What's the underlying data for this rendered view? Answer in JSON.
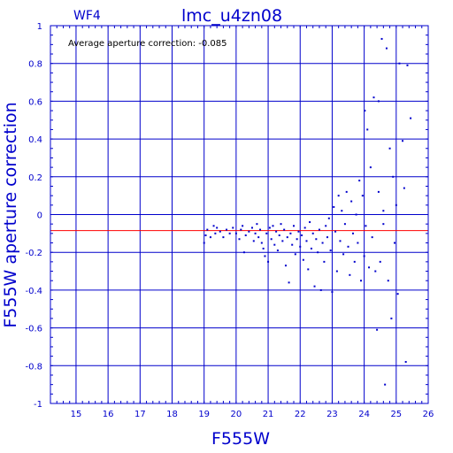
{
  "chart_data": {
    "type": "scatter",
    "title": "lmc_u4zn08",
    "chip_label": "WF4",
    "annotation": "Average aperture correction: -0.085",
    "xlabel": "F555W",
    "ylabel": "F555W aperture correction",
    "xlim": [
      14.2,
      26
    ],
    "ylim": [
      -1,
      1
    ],
    "xticks": [
      15,
      16,
      17,
      18,
      19,
      20,
      21,
      22,
      23,
      24,
      25,
      26
    ],
    "yticks": [
      -1,
      -0.8,
      -0.6,
      -0.4,
      -0.2,
      0,
      0.2,
      0.4,
      0.6,
      0.8,
      1
    ],
    "xtick_labels": [
      "15",
      "16",
      "17",
      "18",
      "19",
      "20",
      "21",
      "22",
      "23",
      "24",
      "25",
      "26"
    ],
    "ytick_labels": [
      "-1",
      "-0.8",
      "-0.6",
      "-0.4",
      "-0.2",
      "0",
      "0.2",
      "0.4",
      "0.6",
      "0.8",
      "1"
    ],
    "grid": true,
    "reference_line": {
      "y": -0.085,
      "color": "#ff0000"
    },
    "colors": {
      "axes": "#0000cc",
      "points": "#0000cc",
      "reference": "#ff0000"
    },
    "points": [
      [
        19.0,
        -0.15
      ],
      [
        19.05,
        -0.11
      ],
      [
        19.1,
        -0.08
      ],
      [
        19.2,
        -0.12
      ],
      [
        19.3,
        -0.06
      ],
      [
        19.35,
        -0.1
      ],
      [
        19.4,
        -0.07
      ],
      [
        19.5,
        -0.09
      ],
      [
        19.6,
        -0.12
      ],
      [
        19.7,
        -0.08
      ],
      [
        19.8,
        -0.1
      ],
      [
        19.9,
        -0.07
      ],
      [
        20.0,
        -0.1
      ],
      [
        20.1,
        -0.13
      ],
      [
        20.15,
        -0.08
      ],
      [
        20.2,
        -0.06
      ],
      [
        20.25,
        -0.2
      ],
      [
        20.3,
        -0.11
      ],
      [
        20.4,
        -0.09
      ],
      [
        20.5,
        -0.07
      ],
      [
        20.55,
        -0.14
      ],
      [
        20.6,
        -0.1
      ],
      [
        20.65,
        -0.05
      ],
      [
        20.7,
        -0.12
      ],
      [
        20.75,
        -0.08
      ],
      [
        20.8,
        -0.15
      ],
      [
        20.85,
        -0.18
      ],
      [
        20.9,
        -0.22
      ],
      [
        20.95,
        -0.1
      ],
      [
        21.0,
        -0.25
      ],
      [
        21.05,
        -0.07
      ],
      [
        21.1,
        -0.13
      ],
      [
        21.15,
        -0.06
      ],
      [
        21.2,
        -0.16
      ],
      [
        21.25,
        -0.09
      ],
      [
        21.3,
        -0.19
      ],
      [
        21.35,
        -0.11
      ],
      [
        21.4,
        -0.05
      ],
      [
        21.45,
        -0.14
      ],
      [
        21.5,
        -0.08
      ],
      [
        21.55,
        -0.27
      ],
      [
        21.6,
        -0.12
      ],
      [
        21.65,
        -0.36
      ],
      [
        21.7,
        -0.1
      ],
      [
        21.75,
        -0.16
      ],
      [
        21.8,
        -0.06
      ],
      [
        21.85,
        -0.21
      ],
      [
        21.9,
        -0.13
      ],
      [
        21.95,
        -0.09
      ],
      [
        22.0,
        -0.17
      ],
      [
        22.05,
        -0.11
      ],
      [
        22.1,
        -0.24
      ],
      [
        22.15,
        -0.07
      ],
      [
        22.2,
        -0.14
      ],
      [
        22.25,
        -0.29
      ],
      [
        22.3,
        -0.04
      ],
      [
        22.35,
        -0.18
      ],
      [
        22.4,
        -0.1
      ],
      [
        22.45,
        -0.38
      ],
      [
        22.5,
        -0.13
      ],
      [
        22.55,
        -0.2
      ],
      [
        22.6,
        -0.08
      ],
      [
        22.65,
        -0.4
      ],
      [
        22.7,
        -0.15
      ],
      [
        22.75,
        -0.25
      ],
      [
        22.8,
        -0.06
      ],
      [
        22.85,
        -0.12
      ],
      [
        22.9,
        -0.02
      ],
      [
        22.95,
        -0.19
      ],
      [
        23.0,
        -0.41
      ],
      [
        23.05,
        0.04
      ],
      [
        23.1,
        -0.09
      ],
      [
        23.15,
        -0.3
      ],
      [
        23.2,
        0.1
      ],
      [
        23.25,
        -0.14
      ],
      [
        23.3,
        0.02
      ],
      [
        23.35,
        -0.21
      ],
      [
        23.4,
        -0.05
      ],
      [
        23.45,
        0.12
      ],
      [
        23.5,
        -0.17
      ],
      [
        23.55,
        -0.32
      ],
      [
        23.6,
        0.07
      ],
      [
        23.65,
        -0.1
      ],
      [
        23.7,
        -0.25
      ],
      [
        23.75,
        0.0
      ],
      [
        23.8,
        -0.15
      ],
      [
        23.85,
        0.18
      ],
      [
        23.9,
        -0.35
      ],
      [
        23.95,
        0.1
      ],
      [
        24.0,
        -0.22
      ],
      [
        24.02,
        0.55
      ],
      [
        24.05,
        -0.06
      ],
      [
        24.1,
        0.45
      ],
      [
        24.15,
        -0.28
      ],
      [
        24.2,
        0.25
      ],
      [
        24.25,
        -0.12
      ],
      [
        24.3,
        0.62
      ],
      [
        24.35,
        -0.3
      ],
      [
        24.4,
        -0.61
      ],
      [
        24.45,
        0.12
      ],
      [
        24.5,
        -0.25
      ],
      [
        24.55,
        0.93
      ],
      [
        24.6,
        -0.05
      ],
      [
        24.65,
        -0.9
      ],
      [
        24.7,
        0.88
      ],
      [
        24.75,
        -0.35
      ],
      [
        24.8,
        0.35
      ],
      [
        24.85,
        -0.55
      ],
      [
        24.9,
        0.2
      ],
      [
        24.95,
        -0.15
      ],
      [
        25.0,
        0.05
      ],
      [
        25.05,
        -0.42
      ],
      [
        25.1,
        0.8
      ],
      [
        25.2,
        0.39
      ],
      [
        25.25,
        0.14
      ],
      [
        25.3,
        -0.78
      ],
      [
        25.35,
        0.79
      ],
      [
        25.45,
        0.51
      ],
      [
        24.45,
        0.6
      ],
      [
        24.6,
        0.02
      ]
    ]
  }
}
